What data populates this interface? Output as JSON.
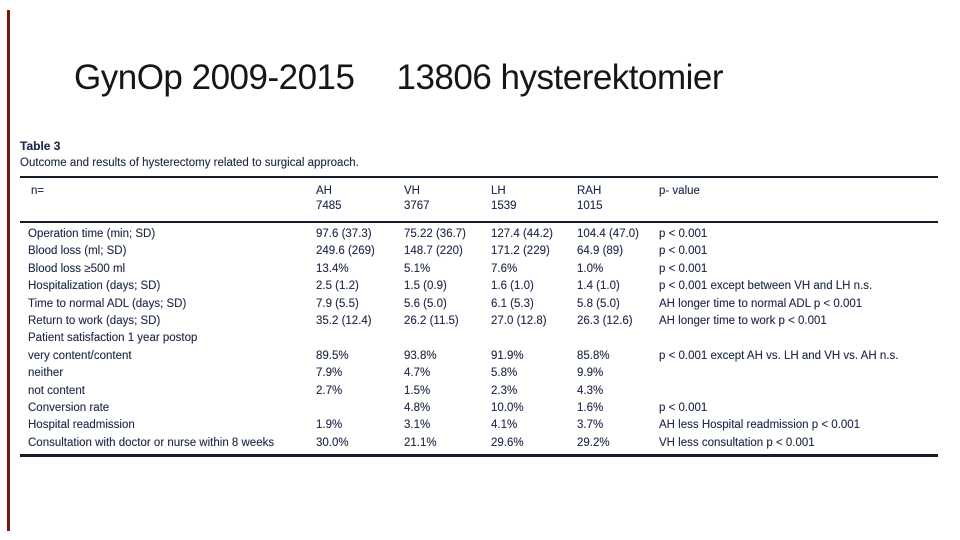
{
  "slide": {
    "title_part1": "GynOp 2009-2015",
    "title_part2": "13806 hysterektomier"
  },
  "table": {
    "label": "Table 3",
    "caption": "Outcome and results of hysterectomy related to surgical approach.",
    "header": {
      "n_label": "n=",
      "cols": [
        {
          "name": "AH",
          "n": "7485"
        },
        {
          "name": "VH",
          "n": "3767"
        },
        {
          "name": "LH",
          "n": "1539"
        },
        {
          "name": "RAH",
          "n": "1015"
        },
        {
          "name": "p- value",
          "n": ""
        }
      ]
    },
    "rows": [
      {
        "label": "Operation time (min; SD)",
        "ah": "97.6 (37.3)",
        "vh": "75.22 (36.7)",
        "lh": "127.4 (44.2)",
        "rah": "104.4 (47.0)",
        "p": "p < 0.001"
      },
      {
        "label": "Blood loss (ml; SD)",
        "ah": "249.6 (269)",
        "vh": "148.7 (220)",
        "lh": "171.2 (229)",
        "rah": "64.9 (89)",
        "p": "p < 0.001"
      },
      {
        "label": "Blood loss ≥500 ml",
        "ah": "13.4%",
        "vh": "5.1%",
        "lh": "7.6%",
        "rah": "1.0%",
        "p": "p < 0.001"
      },
      {
        "label": "Hospitalization (days; SD)",
        "ah": "2.5 (1.2)",
        "vh": "1.5 (0.9)",
        "lh": "1.6 (1.0)",
        "rah": "1.4 (1.0)",
        "p": "p < 0.001 except between VH and LH n.s."
      },
      {
        "label": "Time to normal ADL (days; SD)",
        "ah": "7.9 (5.5)",
        "vh": "5.6 (5.0)",
        "lh": "6.1 (5.3)",
        "rah": "5.8 (5.0)",
        "p": "AH longer time to normal ADL p < 0.001"
      },
      {
        "label": "Return to work (days; SD)",
        "ah": "35.2 (12.4)",
        "vh": "26.2 (11.5)",
        "lh": "27.0 (12.8)",
        "rah": "26.3 (12.6)",
        "p": "AH longer time to work p < 0.001"
      },
      {
        "label": "Patient satisfaction 1 year postop",
        "ah": "",
        "vh": "",
        "lh": "",
        "rah": "",
        "p": ""
      },
      {
        "label": "very content/content",
        "ah": "89.5%",
        "vh": "93.8%",
        "lh": "91.9%",
        "rah": "85.8%",
        "p": "p < 0.001 except AH vs. LH and VH vs. AH n.s."
      },
      {
        "label": "neither",
        "ah": "7.9%",
        "vh": "4.7%",
        "lh": "5.8%",
        "rah": "9.9%",
        "p": ""
      },
      {
        "label": "not content",
        "ah": "2.7%",
        "vh": "1.5%",
        "lh": "2.3%",
        "rah": "4.3%",
        "p": ""
      },
      {
        "label": "Conversion rate",
        "ah": "",
        "vh": "4.8%",
        "lh": "10.0%",
        "rah": "1.6%",
        "p": "p < 0.001"
      },
      {
        "label": "Hospital readmission",
        "ah": "1.9%",
        "vh": "3.1%",
        "lh": "4.1%",
        "rah": "3.7%",
        "p": "AH less Hospital readmission p < 0.001"
      },
      {
        "label": "Consultation with doctor or nurse within 8 weeks",
        "ah": "30.0%",
        "vh": "21.1%",
        "lh": "29.6%",
        "rah": "29.2%",
        "p": "VH less consultation p < 0.001"
      }
    ]
  },
  "colors": {
    "accent_bar": "#75190f",
    "table_text": "#212a4a",
    "title_text": "#161616",
    "rule": "#171c2b"
  }
}
